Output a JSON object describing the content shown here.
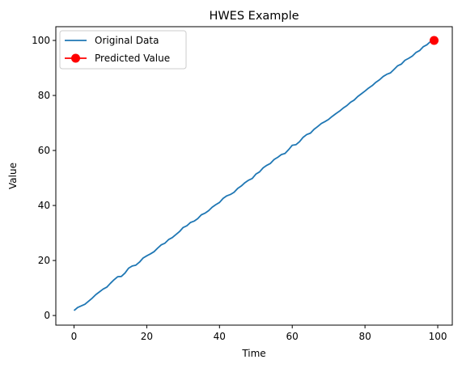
{
  "chart_data": {
    "type": "line",
    "title": "HWES Example",
    "xlabel": "Time",
    "ylabel": "Value",
    "xlim": [
      -5,
      104
    ],
    "ylim": [
      -3.5,
      105
    ],
    "x_ticks": [
      0,
      20,
      40,
      60,
      80,
      100
    ],
    "y_ticks": [
      0,
      20,
      40,
      60,
      80,
      100
    ],
    "grid": false,
    "legend_position": "top-left",
    "series": [
      {
        "name": "Original Data",
        "style": "line",
        "color": "#1f77b4",
        "x": [
          0,
          1,
          2,
          3,
          4,
          5,
          6,
          7,
          8,
          9,
          10,
          11,
          12,
          13,
          14,
          15,
          16,
          17,
          18,
          19,
          20,
          21,
          22,
          23,
          24,
          25,
          26,
          27,
          28,
          29,
          30,
          31,
          32,
          33,
          34,
          35,
          36,
          37,
          38,
          39,
          40,
          41,
          42,
          43,
          44,
          45,
          46,
          47,
          48,
          49,
          50,
          51,
          52,
          53,
          54,
          55,
          56,
          57,
          58,
          59,
          60,
          61,
          62,
          63,
          64,
          65,
          66,
          67,
          68,
          69,
          70,
          71,
          72,
          73,
          74,
          75,
          76,
          77,
          78,
          79,
          80,
          81,
          82,
          83,
          84,
          85,
          86,
          87,
          88,
          89,
          90,
          91,
          92,
          93,
          94,
          95,
          96,
          97,
          98,
          99
        ],
        "values": [
          1.8,
          2.9,
          3.5,
          4.1,
          5.2,
          6.3,
          7.6,
          8.6,
          9.6,
          10.3,
          11.7,
          13.0,
          14.1,
          14.2,
          15.4,
          17.2,
          18.0,
          18.3,
          19.4,
          20.9,
          21.7,
          22.4,
          23.2,
          24.5,
          25.7,
          26.3,
          27.6,
          28.3,
          29.4,
          30.5,
          32.0,
          32.6,
          33.8,
          34.3,
          35.2,
          36.6,
          37.2,
          38.1,
          39.4,
          40.3,
          41.1,
          42.6,
          43.5,
          44.0,
          44.8,
          46.2,
          47.1,
          48.3,
          49.2,
          49.8,
          51.4,
          52.2,
          53.7,
          54.6,
          55.3,
          56.7,
          57.5,
          58.5,
          58.9,
          60.3,
          61.9,
          62.1,
          63.2,
          64.8,
          65.8,
          66.3,
          67.7,
          68.7,
          69.8,
          70.5,
          71.3,
          72.4,
          73.4,
          74.3,
          75.4,
          76.3,
          77.5,
          78.3,
          79.6,
          80.6,
          81.6,
          82.7,
          83.6,
          84.8,
          85.7,
          86.9,
          87.7,
          88.2,
          89.5,
          90.8,
          91.4,
          92.8,
          93.5,
          94.3,
          95.6,
          96.3,
          97.7,
          98.4,
          99.6,
          100.0
        ]
      },
      {
        "name": "Predicted Value",
        "style": "marker",
        "color": "#ff0000",
        "x": [
          99
        ],
        "values": [
          100
        ]
      }
    ]
  }
}
